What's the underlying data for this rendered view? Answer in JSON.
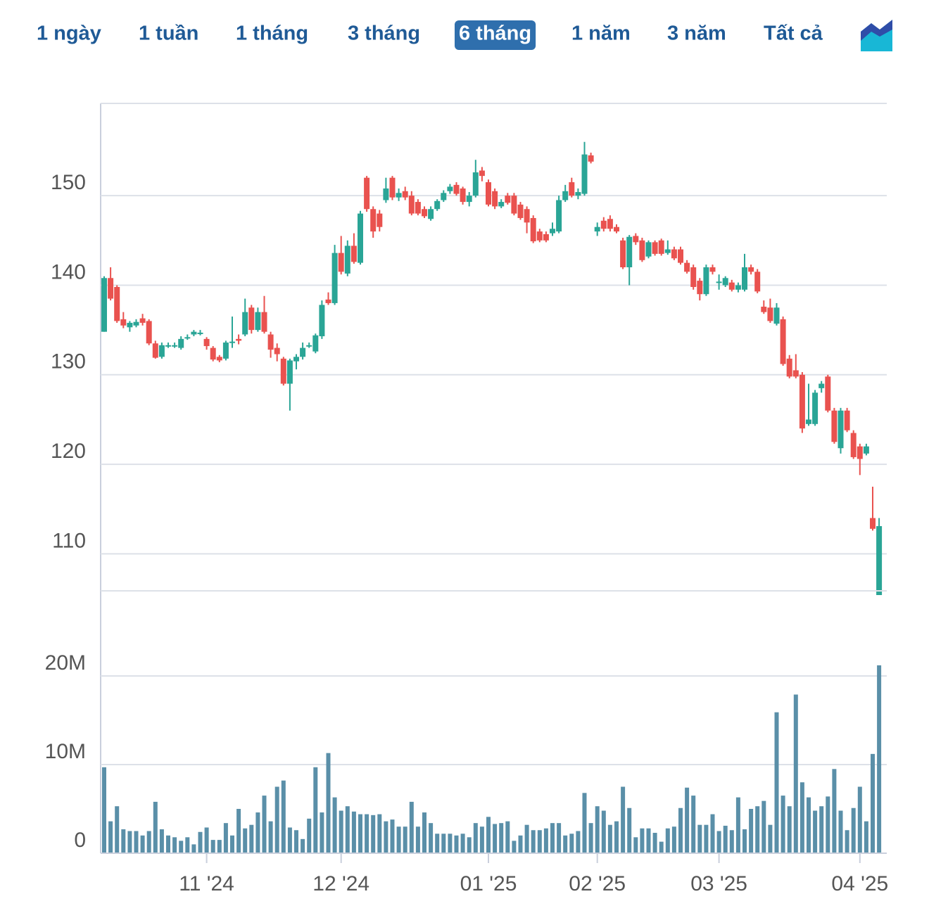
{
  "toolbar": {
    "buttons": [
      "1 ngày",
      "1 tuần",
      "1 tháng",
      "3 tháng",
      "6 tháng",
      "1 năm",
      "3 năm",
      "Tất cả"
    ],
    "selected": 4
  },
  "chart_data": [
    {
      "type": "candlestick",
      "up_color": "#2aa596",
      "down_color": "#e9524f",
      "ylim": [
        105.4,
        160.3
      ],
      "yticks": [
        110,
        120,
        130,
        140,
        150
      ],
      "grid": true,
      "open": [
        134.8,
        140.8,
        139.8,
        136.2,
        135.3,
        135.5,
        136.3,
        136,
        133.5,
        132,
        133.3,
        133.2,
        133,
        134.2,
        134.5,
        134.7,
        134,
        133,
        132,
        131.8,
        133.7,
        134,
        134.5,
        137.5,
        135,
        137,
        134.5,
        133,
        131.8,
        129,
        131.5,
        132,
        133.3,
        132.6,
        134.3,
        138.4,
        138,
        143.6,
        141.3,
        144.4,
        142.5,
        152,
        148.5,
        148,
        149.5,
        152,
        149.8,
        150.5,
        150,
        149.3,
        148.5,
        147.4,
        148.5,
        149.5,
        150.5,
        151.2,
        150.8,
        149.3,
        150,
        152.8,
        151.5,
        150.5,
        148.8,
        150,
        150,
        149,
        148.5,
        147.5,
        146,
        145.7,
        145.8,
        146,
        149.5,
        151.5,
        150,
        150.2,
        154.5,
        146,
        147.2,
        147.4,
        146.5,
        145,
        142,
        145.5,
        145,
        143.2,
        144.8,
        145,
        143.6,
        144,
        144,
        142.5,
        142,
        140.5,
        139,
        142,
        140.3,
        140,
        140.3,
        139.5,
        139.5,
        142,
        141.5,
        137.6,
        137.5,
        135.7,
        136.2,
        131.8,
        130.5,
        130,
        124.5,
        124.5,
        128.5,
        129.8,
        126,
        121.8,
        126,
        123.5,
        122,
        121.2,
        114,
        105.4
      ],
      "high": [
        141,
        142,
        140,
        137,
        136,
        136.2,
        136.8,
        136.2,
        133.8,
        133.6,
        133.6,
        133.6,
        134.3,
        134.5,
        135,
        135,
        134.2,
        133.2,
        132.2,
        133.8,
        136.5,
        134.5,
        138.5,
        137.8,
        137.5,
        138.8,
        134.8,
        133.5,
        132,
        131.8,
        132.3,
        133.6,
        133.6,
        134.6,
        138.3,
        139.2,
        144.5,
        145.5,
        145,
        145.8,
        148.3,
        152.2,
        148.8,
        148.4,
        152,
        152.2,
        150.8,
        151,
        150.5,
        149.6,
        148.8,
        148.8,
        149.6,
        150.6,
        151.3,
        151.5,
        151,
        150.4,
        154,
        153.2,
        151.8,
        150.8,
        149.6,
        150.3,
        150.3,
        149.3,
        148.8,
        147.8,
        146.3,
        146,
        147,
        150,
        151.2,
        152,
        150.8,
        156,
        154.8,
        147,
        147.6,
        147.8,
        146.8,
        145.3,
        145.6,
        145.8,
        145.3,
        145,
        145,
        145.2,
        145,
        144.3,
        144.3,
        142.8,
        142.3,
        140.8,
        142.3,
        142.3,
        141.2,
        141,
        140.6,
        140.3,
        143.5,
        142.3,
        141.8,
        138.3,
        138.5,
        138,
        136.5,
        132.2,
        132.3,
        130.3,
        129,
        128.3,
        129.3,
        130,
        126.3,
        126.3,
        126.3,
        123.8,
        122.3,
        122.3,
        117.5,
        114
      ],
      "low": [
        134.8,
        138.3,
        135.8,
        135.2,
        134.8,
        135.3,
        135.5,
        133.3,
        131.8,
        131.8,
        133,
        133,
        132.8,
        133.9,
        134.3,
        134.4,
        132.8,
        131.5,
        131.4,
        131.6,
        133,
        133.4,
        134.3,
        134.6,
        134.8,
        134.6,
        131.9,
        131.5,
        128.8,
        126,
        130.6,
        131.7,
        133,
        132.4,
        134,
        137.8,
        137.8,
        141.2,
        141,
        142.4,
        142.3,
        148.2,
        145.3,
        146,
        149.2,
        149.5,
        149.4,
        149.5,
        147.8,
        147.8,
        147.5,
        147.2,
        148.3,
        149.3,
        150.2,
        150,
        149,
        148.8,
        149.8,
        151.6,
        148.8,
        148.5,
        148.6,
        149,
        147.8,
        147.3,
        145.8,
        144.7,
        144.8,
        144.8,
        145.5,
        145.8,
        149.3,
        149.8,
        149.6,
        150,
        153.6,
        145.5,
        146,
        146,
        145.8,
        141.8,
        140,
        144.5,
        142.6,
        143,
        143.3,
        143.3,
        143.4,
        142.8,
        142.3,
        141.3,
        139.5,
        138.3,
        138.8,
        141.2,
        139.5,
        139.8,
        139.3,
        139.2,
        139.3,
        141.2,
        139.1,
        136.8,
        135.8,
        135.5,
        131,
        129.6,
        129.6,
        123.5,
        124.3,
        124.3,
        128,
        125.8,
        122.3,
        121.2,
        123.6,
        120.6,
        118.8,
        121,
        112.6,
        105.4
      ],
      "close": [
        140.8,
        138.5,
        136,
        135.5,
        135.8,
        135.9,
        135.8,
        133.5,
        131.9,
        133.3,
        133.3,
        133.3,
        134,
        134.2,
        134.8,
        134.7,
        133.2,
        131.7,
        131.6,
        133.6,
        133.7,
        133.8,
        137,
        135,
        137,
        134.8,
        132.8,
        132.3,
        129,
        131.6,
        132,
        133,
        133.3,
        134.4,
        137.8,
        138,
        143.6,
        141.5,
        144.4,
        142.6,
        148,
        148.5,
        146,
        146.5,
        150.8,
        149.8,
        150.3,
        149.8,
        148,
        148,
        147.7,
        148.5,
        149.4,
        150.3,
        151,
        150.2,
        149.3,
        150,
        152.6,
        152.2,
        149,
        148.8,
        149.3,
        149.2,
        148,
        147.5,
        147,
        144.9,
        145,
        145,
        146.3,
        149.5,
        150.5,
        150,
        150.4,
        154.6,
        153.8,
        146.5,
        146.3,
        146.3,
        146,
        142,
        145.4,
        144.8,
        142.8,
        144.8,
        143.5,
        143.5,
        144,
        143,
        142.5,
        141.5,
        139.8,
        139,
        142,
        141.5,
        140.4,
        140.8,
        139.5,
        140,
        142,
        141.5,
        139.3,
        137,
        136,
        137.5,
        131.2,
        129.8,
        129.8,
        124,
        125,
        128,
        129,
        126,
        122.5,
        126,
        123.8,
        120.8,
        120.6,
        122,
        112.8,
        113.1
      ]
    },
    {
      "type": "bar",
      "color": "#5a8fa8",
      "ylim": [
        0,
        29.6
      ],
      "yticks": [
        0,
        {
          "value": 10,
          "label": "10M"
        },
        {
          "value": 20,
          "label": "20M"
        }
      ],
      "grid": true,
      "categories": [
        null,
        null,
        null,
        null,
        null,
        null,
        null,
        null,
        null,
        null,
        null,
        null,
        null,
        null,
        null,
        null,
        "11 '24",
        null,
        null,
        null,
        null,
        null,
        null,
        null,
        null,
        null,
        null,
        null,
        null,
        null,
        null,
        null,
        null,
        null,
        null,
        null,
        null,
        "12 '24",
        null,
        null,
        null,
        null,
        null,
        null,
        null,
        null,
        null,
        null,
        null,
        null,
        null,
        null,
        null,
        null,
        null,
        null,
        null,
        null,
        null,
        null,
        "01 '25",
        null,
        null,
        null,
        null,
        null,
        null,
        null,
        null,
        null,
        null,
        null,
        null,
        null,
        null,
        null,
        null,
        "02 '25",
        null,
        null,
        null,
        null,
        null,
        null,
        null,
        null,
        null,
        null,
        null,
        null,
        null,
        null,
        null,
        null,
        null,
        null,
        "03 '25",
        null,
        null,
        null,
        null,
        null,
        null,
        null,
        null,
        null,
        null,
        null,
        null,
        null,
        null,
        null,
        null,
        null,
        null,
        null,
        null,
        null,
        "04 '25",
        null,
        null,
        null
      ],
      "values": [
        9.7,
        3.6,
        5.3,
        2.7,
        2.5,
        2.5,
        2.0,
        2.5,
        5.8,
        2.7,
        2.0,
        1.8,
        1.4,
        1.8,
        1.0,
        2.4,
        2.9,
        1.5,
        1.5,
        3.4,
        2.0,
        5.0,
        2.8,
        3.2,
        4.6,
        6.5,
        3.6,
        7.5,
        8.2,
        2.9,
        2.6,
        1.6,
        3.9,
        9.7,
        4.6,
        11.3,
        6.3,
        4.8,
        5.3,
        4.7,
        4.4,
        4.4,
        4.3,
        4.4,
        3.6,
        3.8,
        3.0,
        3.0,
        5.8,
        3.0,
        4.6,
        3.4,
        2.2,
        2.2,
        2.2,
        2.0,
        2.2,
        1.8,
        3.4,
        3.0,
        4.1,
        3.3,
        3.4,
        3.6,
        1.4,
        2.0,
        3.2,
        2.6,
        2.6,
        2.8,
        3.4,
        3.4,
        2.0,
        2.2,
        2.5,
        6.8,
        3.4,
        5.3,
        4.8,
        3.2,
        3.6,
        7.5,
        5.1,
        1.8,
        2.8,
        2.8,
        2.3,
        1.3,
        2.8,
        3.0,
        5.1,
        7.4,
        6.5,
        3.2,
        3.2,
        4.4,
        2.5,
        3.1,
        2.6,
        6.3,
        2.7,
        5.0,
        5.3,
        5.9,
        3.2,
        15.9,
        6.5,
        5.3,
        17.9,
        8.0,
        6.3,
        4.8,
        5.3,
        6.4,
        9.5,
        4.8,
        2.6,
        5.1,
        7.5,
        3.6,
        11.2,
        21.2
      ]
    }
  ]
}
